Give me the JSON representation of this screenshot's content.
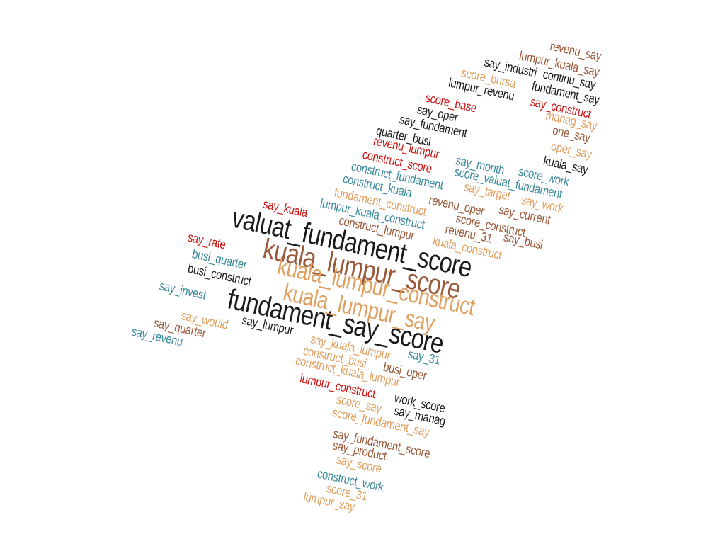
{
  "colors": {
    "black": "#1a1a1a",
    "brown": "#9a5a3a",
    "orange": "#e0a060",
    "red": "#cc1111",
    "teal": "#3a8a9a"
  },
  "words": [
    {
      "text": "revenu_say",
      "color": "brown"
    },
    {
      "text": "lumpur_kuala_say",
      "color": "brown"
    },
    {
      "text": "say_industri",
      "color": "black"
    },
    {
      "text": "continu_say",
      "color": "black"
    },
    {
      "text": "score_bursa",
      "color": "orange"
    },
    {
      "text": "fundament_say",
      "color": "black"
    },
    {
      "text": "lumpur_revenu",
      "color": "black"
    },
    {
      "text": "say_construct",
      "color": "red"
    },
    {
      "text": "score_base",
      "color": "red"
    },
    {
      "text": "say_oper",
      "color": "black"
    },
    {
      "text": "manag_say",
      "color": "orange"
    },
    {
      "text": "say_fundament",
      "color": "black"
    },
    {
      "text": "one_say",
      "color": "brown"
    },
    {
      "text": "quarter_busi",
      "color": "black"
    },
    {
      "text": "revenu_lumpur",
      "color": "red"
    },
    {
      "text": "oper_say",
      "color": "orange"
    },
    {
      "text": "construct_score",
      "color": "red"
    },
    {
      "text": "say_month",
      "color": "teal"
    },
    {
      "text": "kuala_say",
      "color": "black"
    },
    {
      "text": "score_work",
      "color": "teal"
    },
    {
      "text": "construct_fundament",
      "color": "teal"
    },
    {
      "text": "score_valuat_fundament",
      "color": "teal"
    },
    {
      "text": "construct_kuala",
      "color": "teal"
    },
    {
      "text": "say_target",
      "color": "orange"
    },
    {
      "text": "say_work",
      "color": "orange"
    },
    {
      "text": "fundament_construct",
      "color": "orange"
    },
    {
      "text": "revenu_oper",
      "color": "brown"
    },
    {
      "text": "say_current",
      "color": "brown"
    },
    {
      "text": "say_kuala",
      "color": "red"
    },
    {
      "text": "lumpur_kuala_construct",
      "color": "teal"
    },
    {
      "text": "score_construct",
      "color": "brown"
    },
    {
      "text": "construct_lumpur",
      "color": "brown"
    },
    {
      "text": "revenu_31",
      "color": "brown"
    },
    {
      "text": "say_busi",
      "color": "brown"
    },
    {
      "text": "valuat_fundament_score",
      "color": "black"
    },
    {
      "text": "kuala_construct",
      "color": "orange"
    },
    {
      "text": "say_rate",
      "color": "red"
    },
    {
      "text": "kuala_lumpur_score",
      "color": "brown"
    },
    {
      "text": "busi_quarter",
      "color": "teal"
    },
    {
      "text": "busi_construct",
      "color": "black"
    },
    {
      "text": "kuala_lumpur_construct",
      "color": "orange"
    },
    {
      "text": "say_invest",
      "color": "teal"
    },
    {
      "text": "fundament_say_score",
      "color": "black"
    },
    {
      "text": "kuala_lumpur_say",
      "color": "orange"
    },
    {
      "text": "say_would",
      "color": "orange"
    },
    {
      "text": "say_quarter",
      "color": "brown"
    },
    {
      "text": "say_lumpur",
      "color": "black"
    },
    {
      "text": "say_revenu",
      "color": "teal"
    },
    {
      "text": "say_kuala_lumpur",
      "color": "orange"
    },
    {
      "text": "say_31",
      "color": "teal"
    },
    {
      "text": "construct_busi",
      "color": "orange"
    },
    {
      "text": "busi_oper",
      "color": "brown"
    },
    {
      "text": "construct_kuala_lumpur",
      "color": "orange"
    },
    {
      "text": "lumpur_construct",
      "color": "red"
    },
    {
      "text": "work_score",
      "color": "black"
    },
    {
      "text": "score_say",
      "color": "orange"
    },
    {
      "text": "say_manag",
      "color": "black"
    },
    {
      "text": "score_fundament_say",
      "color": "orange"
    },
    {
      "text": "say_fundament_score",
      "color": "brown"
    },
    {
      "text": "say_product",
      "color": "brown"
    },
    {
      "text": "say_score",
      "color": "orange"
    },
    {
      "text": "construct_work",
      "color": "teal"
    },
    {
      "text": "score_31",
      "color": "orange"
    },
    {
      "text": "lumpur_say",
      "color": "orange"
    }
  ]
}
